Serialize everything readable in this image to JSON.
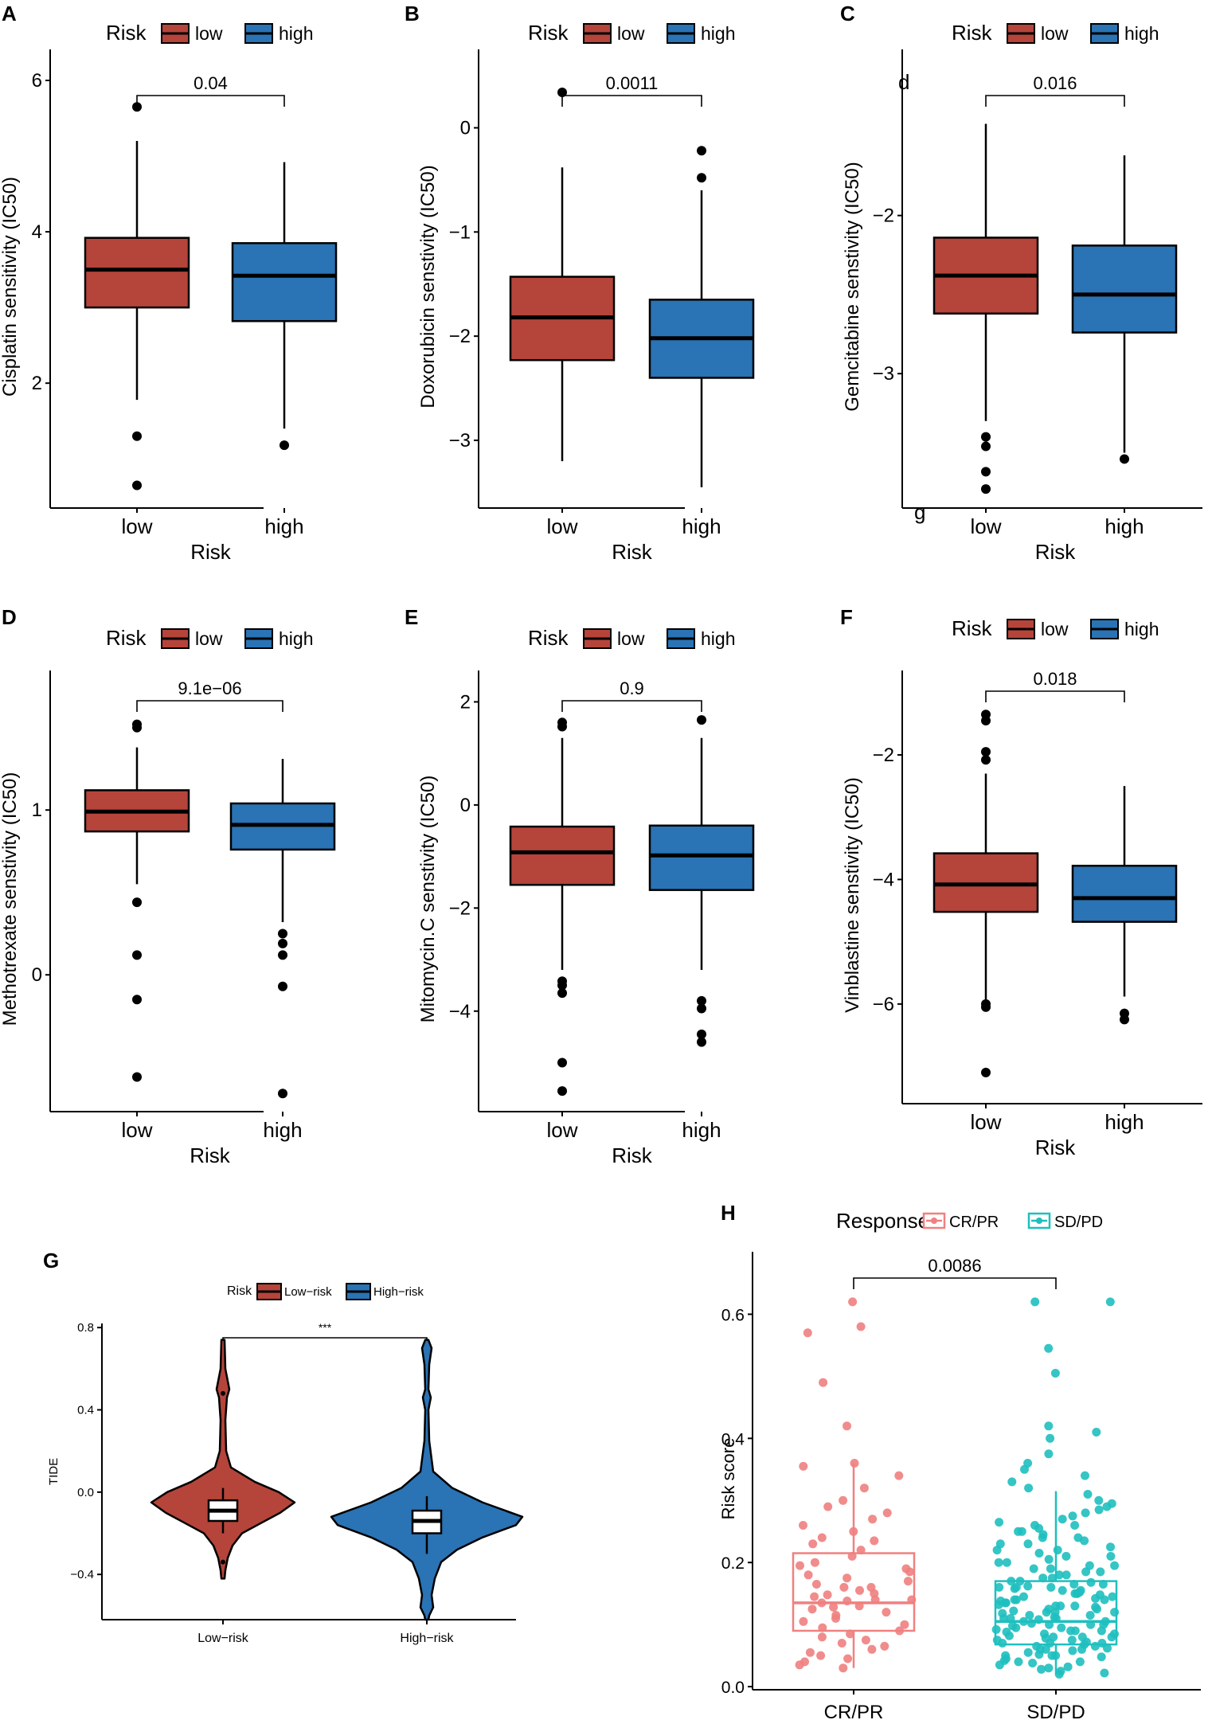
{
  "colors": {
    "low": "#b5443a",
    "high": "#2a73b4",
    "crpr": "#f08080",
    "sdpd": "#1fbfbf",
    "axis": "#000000"
  },
  "chart_data": [
    {
      "id": "A",
      "type": "boxplot",
      "panel_label": "A",
      "legend_title": "Risk",
      "legend_items": [
        "low",
        "high"
      ],
      "categories": [
        "low",
        "high"
      ],
      "xlabel": "Risk",
      "ylabel": "Cisplatin sensitivity (IC50)",
      "ylim": [
        0.35,
        6.2
      ],
      "yticks": [
        2,
        4,
        6
      ],
      "ytick_labels": [
        "2",
        "4",
        "6"
      ],
      "boxes": [
        {
          "name": "low",
          "min": 1.78,
          "q1": 3.0,
          "median": 3.5,
          "q3": 3.92,
          "max": 5.2,
          "outliers": [
            5.65,
            1.3,
            0.65
          ]
        },
        {
          "name": "high",
          "min": 1.4,
          "q1": 2.82,
          "median": 3.42,
          "q3": 3.85,
          "max": 4.92,
          "outliers": [
            1.18
          ]
        }
      ],
      "pvalue": "0.04"
    },
    {
      "id": "B",
      "type": "boxplot",
      "panel_label": "B",
      "legend_title": "Risk",
      "legend_items": [
        "low",
        "high"
      ],
      "categories": [
        "low",
        "high"
      ],
      "xlabel": "Risk",
      "ylabel": "Doxorubicin senstivity (IC50)",
      "ylim": [
        -3.65,
        0.6
      ],
      "yticks": [
        0,
        -1,
        -2,
        -3
      ],
      "ytick_labels": [
        "0",
        "−1",
        "−2",
        "−3"
      ],
      "boxes": [
        {
          "name": "low",
          "min": -3.2,
          "q1": -2.23,
          "median": -1.82,
          "q3": -1.43,
          "max": -0.38,
          "outliers": [
            0.34
          ]
        },
        {
          "name": "high",
          "min": -3.45,
          "q1": -2.4,
          "median": -2.02,
          "q3": -1.65,
          "max": -0.6,
          "outliers": [
            -0.22,
            -0.48
          ]
        }
      ],
      "pvalue": "0.0011"
    },
    {
      "id": "C",
      "type": "boxplot",
      "panel_label": "C",
      "legend_title": "Risk",
      "legend_items": [
        "low",
        "high"
      ],
      "categories": [
        "low",
        "high"
      ],
      "xlabel": "Risk",
      "ylabel": "Gemcitabine senstivity (IC50)",
      "ylim": [
        -3.85,
        -1.05
      ],
      "yticks": [
        -2,
        -3
      ],
      "ytick_labels": [
        "−2",
        "−3"
      ],
      "boxes": [
        {
          "name": "low",
          "min": -3.3,
          "q1": -2.62,
          "median": -2.38,
          "q3": -2.14,
          "max": -1.42,
          "outliers": [
            -3.4,
            -3.46,
            -3.62,
            -3.73
          ]
        },
        {
          "name": "high",
          "min": -3.5,
          "q1": -2.74,
          "median": -2.5,
          "q3": -2.19,
          "max": -1.62,
          "outliers": [
            -3.54
          ]
        }
      ],
      "pvalue": "0.016",
      "stray_text": [
        "d",
        "g"
      ]
    },
    {
      "id": "D",
      "type": "boxplot",
      "panel_label": "D",
      "legend_title": "Risk",
      "legend_items": [
        "low",
        "high"
      ],
      "categories": [
        "low",
        "high"
      ],
      "xlabel": "Risk",
      "ylabel": "Methotrexate senstivity (IC50)",
      "ylim": [
        -0.83,
        1.75
      ],
      "yticks": [
        1,
        0
      ],
      "ytick_labels": [
        "1",
        "0"
      ],
      "boxes": [
        {
          "name": "low",
          "min": 0.55,
          "q1": 0.87,
          "median": 0.99,
          "q3": 1.12,
          "max": 1.38,
          "outliers": [
            1.52,
            1.5,
            0.44,
            0.12,
            -0.15,
            -0.62
          ]
        },
        {
          "name": "high",
          "min": 0.32,
          "q1": 0.76,
          "median": 0.91,
          "q3": 1.04,
          "max": 1.31,
          "outliers": [
            0.25,
            0.19,
            0.12,
            -0.07,
            -0.72
          ]
        }
      ],
      "pvalue": "9.1e−06"
    },
    {
      "id": "E",
      "type": "boxplot",
      "panel_label": "E",
      "legend_title": "Risk",
      "legend_items": [
        "low",
        "high"
      ],
      "categories": [
        "low",
        "high"
      ],
      "xlabel": "Risk",
      "ylabel": "Mitomycin.C senstivity (IC50)",
      "ylim": [
        -5.95,
        2.3
      ],
      "yticks": [
        2,
        0,
        -2,
        -4
      ],
      "ytick_labels": [
        "2",
        "0",
        "−2",
        "−4"
      ],
      "boxes": [
        {
          "name": "low",
          "min": -3.2,
          "q1": -1.55,
          "median": -0.92,
          "q3": -0.42,
          "max": 1.3,
          "outliers": [
            1.6,
            1.52,
            -3.42,
            -3.5,
            -3.65,
            -5.0,
            -5.55
          ]
        },
        {
          "name": "high",
          "min": -3.2,
          "q1": -1.65,
          "median": -0.98,
          "q3": -0.4,
          "max": 1.3,
          "outliers": [
            1.65,
            -3.8,
            -3.95,
            -4.45,
            -4.6
          ]
        }
      ],
      "pvalue": "0.9"
    },
    {
      "id": "F",
      "type": "boxplot",
      "panel_label": "F",
      "legend_title": "Risk",
      "legend_items": [
        "low",
        "high"
      ],
      "categories": [
        "low",
        "high"
      ],
      "xlabel": "Risk",
      "ylabel": "Vinblastine senstivity (IC50)",
      "ylim": [
        -7.6,
        -0.9
      ],
      "yticks": [
        -2,
        -4,
        -6
      ],
      "ytick_labels": [
        "−2",
        "−4",
        "−6"
      ],
      "boxes": [
        {
          "name": "low",
          "min": -5.95,
          "q1": -4.52,
          "median": -4.08,
          "q3": -3.58,
          "max": -2.3,
          "outliers": [
            -1.35,
            -1.45,
            -1.95,
            -2.08,
            -6.0,
            -6.05,
            -7.1
          ]
        },
        {
          "name": "high",
          "min": -5.88,
          "q1": -4.68,
          "median": -4.3,
          "q3": -3.78,
          "max": -2.5,
          "outliers": [
            -6.15,
            -6.25
          ]
        }
      ],
      "pvalue": "0.018"
    },
    {
      "id": "G",
      "type": "violin",
      "panel_label": "G",
      "legend_title": "Risk",
      "legend_items": [
        "Low−risk",
        "High−risk"
      ],
      "categories": [
        "Low−risk",
        "High−risk"
      ],
      "xlabel": "",
      "ylabel": "TIDE",
      "ylim": [
        -0.62,
        0.82
      ],
      "yticks": [
        0.8,
        0.4,
        0.0,
        -0.4
      ],
      "ytick_labels": [
        "0.8",
        "0.4",
        "0.0",
        "−0.4"
      ],
      "boxes": [
        {
          "name": "Low−risk",
          "min": -0.2,
          "q1": -0.14,
          "median": -0.09,
          "q3": -0.04,
          "max": 0.02,
          "outliers": [
            0.48,
            -0.34
          ]
        },
        {
          "name": "High−risk",
          "min": -0.3,
          "q1": -0.2,
          "median": -0.14,
          "q3": -0.09,
          "max": -0.02,
          "outliers": []
        }
      ],
      "pvalue": "***"
    },
    {
      "id": "H",
      "type": "box_jitter",
      "panel_label": "H",
      "legend_title": "Response",
      "legend_items": [
        "CR/PR",
        "SD/PD"
      ],
      "categories": [
        "CR/PR",
        "SD/PD"
      ],
      "xlabel": "",
      "ylabel": "Risk score",
      "ylim": [
        -0.005,
        0.675
      ],
      "yticks": [
        0.0,
        0.2,
        0.4,
        0.6
      ],
      "ytick_labels": [
        "0.0",
        "0.2",
        "0.4",
        "0.6"
      ],
      "boxes": [
        {
          "name": "CR/PR",
          "min": 0.03,
          "q1": 0.09,
          "median": 0.135,
          "q3": 0.215,
          "max": 0.36
        },
        {
          "name": "SD/PD",
          "min": 0.02,
          "q1": 0.068,
          "median": 0.105,
          "q3": 0.17,
          "max": 0.315
        }
      ],
      "points_crpr": [
        0.62,
        0.58,
        0.57,
        0.49,
        0.42,
        0.36,
        0.355,
        0.34,
        0.32,
        0.3,
        0.29,
        0.28,
        0.27,
        0.26,
        0.25,
        0.24,
        0.235,
        0.23,
        0.22,
        0.21,
        0.2,
        0.195,
        0.19,
        0.185,
        0.18,
        0.175,
        0.17,
        0.165,
        0.16,
        0.155,
        0.15,
        0.148,
        0.145,
        0.14,
        0.138,
        0.135,
        0.13,
        0.128,
        0.125,
        0.12,
        0.115,
        0.11,
        0.105,
        0.1,
        0.095,
        0.09,
        0.085,
        0.08,
        0.075,
        0.07,
        0.065,
        0.06,
        0.055,
        0.05,
        0.045,
        0.04,
        0.035,
        0.03,
        0.14,
        0.16
      ],
      "points_sdpd": [
        0.62,
        0.62,
        0.545,
        0.505,
        0.42,
        0.41,
        0.4,
        0.375,
        0.36,
        0.35,
        0.34,
        0.33,
        0.32,
        0.31,
        0.3,
        0.295,
        0.29,
        0.285,
        0.28,
        0.275,
        0.27,
        0.265,
        0.26,
        0.255,
        0.25,
        0.245,
        0.24,
        0.235,
        0.23,
        0.225,
        0.22,
        0.215,
        0.21,
        0.205,
        0.2,
        0.195,
        0.19,
        0.185,
        0.18,
        0.175,
        0.17,
        0.168,
        0.165,
        0.162,
        0.16,
        0.158,
        0.155,
        0.152,
        0.15,
        0.148,
        0.145,
        0.142,
        0.14,
        0.138,
        0.135,
        0.132,
        0.13,
        0.128,
        0.125,
        0.122,
        0.12,
        0.118,
        0.115,
        0.112,
        0.11,
        0.108,
        0.105,
        0.102,
        0.1,
        0.098,
        0.095,
        0.092,
        0.09,
        0.088,
        0.085,
        0.082,
        0.08,
        0.078,
        0.075,
        0.072,
        0.07,
        0.068,
        0.065,
        0.062,
        0.06,
        0.058,
        0.055,
        0.052,
        0.05,
        0.048,
        0.045,
        0.042,
        0.04,
        0.038,
        0.035,
        0.032,
        0.03,
        0.028,
        0.025,
        0.022,
        0.02,
        0.12,
        0.11,
        0.1,
        0.09,
        0.13,
        0.14,
        0.15,
        0.16,
        0.08,
        0.07,
        0.06,
        0.05,
        0.04,
        0.115,
        0.105,
        0.095,
        0.085,
        0.075,
        0.065,
        0.125,
        0.135,
        0.145,
        0.155,
        0.165,
        0.175,
        0.185,
        0.195,
        0.11,
        0.1,
        0.09,
        0.08,
        0.07,
        0.06,
        0.05,
        0.12,
        0.13,
        0.14,
        0.15,
        0.16,
        0.17,
        0.18,
        0.19,
        0.2,
        0.21,
        0.22,
        0.23,
        0.24,
        0.25,
        0.26
      ],
      "pvalue": "0.0086"
    }
  ]
}
